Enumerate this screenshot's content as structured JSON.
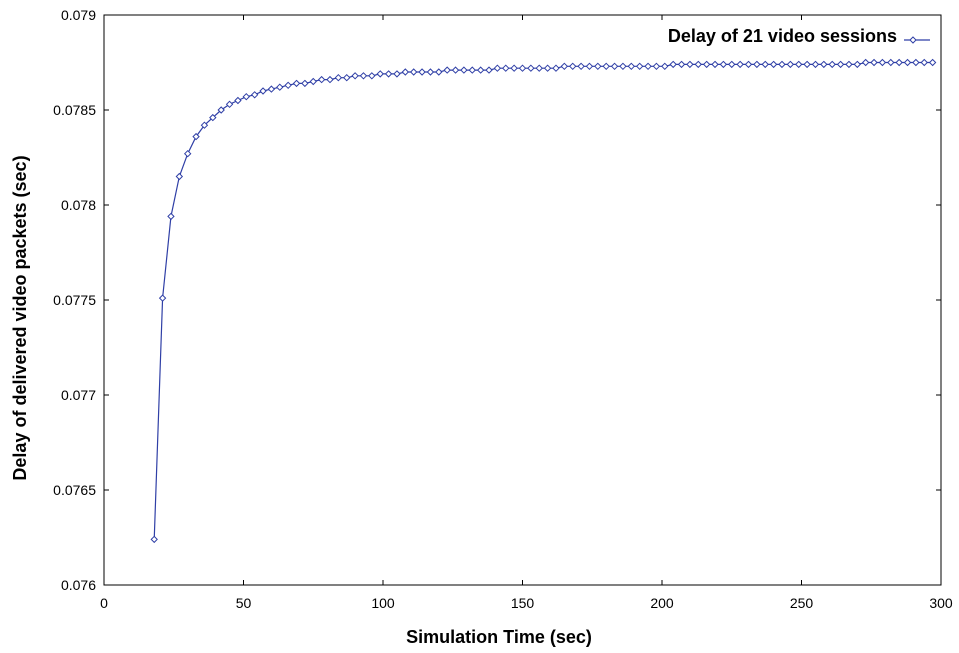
{
  "chart_data": {
    "type": "line",
    "title": "",
    "xlabel": "Simulation Time (sec)",
    "ylabel": "Delay of delivered video packets (sec)",
    "xlim": [
      0,
      300
    ],
    "ylim": [
      0.076,
      0.079
    ],
    "x_ticks": [
      0,
      50,
      100,
      150,
      200,
      250,
      300
    ],
    "y_ticks": [
      0.076,
      0.0765,
      0.077,
      0.0775,
      0.078,
      0.0785,
      0.079
    ],
    "x_tick_labels": [
      "0",
      "50",
      "100",
      "150",
      "200",
      "250",
      "300"
    ],
    "y_tick_labels": [
      "0.076",
      "0.0765",
      "0.077",
      "0.0775",
      "0.078",
      "0.0785",
      "0.079"
    ],
    "grid": false,
    "legend_position": "top-right",
    "series": [
      {
        "name": "Delay of 21 video sessions",
        "color": "#2f3fa6",
        "marker": "diamond",
        "x": [
          18,
          21,
          24,
          27,
          30,
          33,
          36,
          39,
          42,
          45,
          48,
          51,
          54,
          57,
          60,
          63,
          66,
          69,
          72,
          75,
          78,
          81,
          84,
          87,
          90,
          93,
          96,
          99,
          102,
          105,
          108,
          111,
          114,
          117,
          120,
          123,
          126,
          129,
          132,
          135,
          138,
          141,
          144,
          147,
          150,
          153,
          156,
          159,
          162,
          165,
          168,
          171,
          174,
          177,
          180,
          183,
          186,
          189,
          192,
          195,
          198,
          201,
          204,
          207,
          210,
          213,
          216,
          219,
          222,
          225,
          228,
          231,
          234,
          237,
          240,
          243,
          246,
          249,
          252,
          255,
          258,
          261,
          264,
          267,
          270,
          273,
          276,
          279,
          282,
          285,
          288,
          291,
          294,
          297
        ],
        "y": [
          0.07624,
          0.07751,
          0.07794,
          0.07815,
          0.07827,
          0.07836,
          0.07842,
          0.07846,
          0.0785,
          0.07853,
          0.07855,
          0.07857,
          0.07858,
          0.0786,
          0.07861,
          0.07862,
          0.07863,
          0.07864,
          0.07864,
          0.07865,
          0.07866,
          0.07866,
          0.07867,
          0.07867,
          0.07868,
          0.07868,
          0.07868,
          0.07869,
          0.07869,
          0.07869,
          0.0787,
          0.0787,
          0.0787,
          0.0787,
          0.0787,
          0.07871,
          0.07871,
          0.07871,
          0.07871,
          0.07871,
          0.07871,
          0.07872,
          0.07872,
          0.07872,
          0.07872,
          0.07872,
          0.07872,
          0.07872,
          0.07872,
          0.07873,
          0.07873,
          0.07873,
          0.07873,
          0.07873,
          0.07873,
          0.07873,
          0.07873,
          0.07873,
          0.07873,
          0.07873,
          0.07873,
          0.07873,
          0.07874,
          0.07874,
          0.07874,
          0.07874,
          0.07874,
          0.07874,
          0.07874,
          0.07874,
          0.07874,
          0.07874,
          0.07874,
          0.07874,
          0.07874,
          0.07874,
          0.07874,
          0.07874,
          0.07874,
          0.07874,
          0.07874,
          0.07874,
          0.07874,
          0.07874,
          0.07874,
          0.07875,
          0.07875,
          0.07875,
          0.07875,
          0.07875,
          0.07875,
          0.07875,
          0.07875,
          0.07875
        ]
      }
    ]
  }
}
